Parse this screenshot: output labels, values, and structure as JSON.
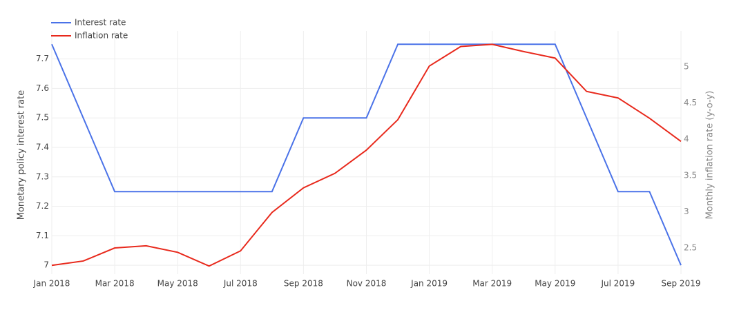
{
  "chart_data": {
    "type": "line",
    "x": [
      "2018-01",
      "2018-02",
      "2018-03",
      "2018-04",
      "2018-05",
      "2018-06",
      "2018-07",
      "2018-08",
      "2018-09",
      "2018-10",
      "2018-11",
      "2018-12",
      "2019-01",
      "2019-02",
      "2019-03",
      "2019-04",
      "2019-05",
      "2019-06",
      "2019-07",
      "2019-08",
      "2019-09"
    ],
    "xticks": [
      {
        "value": "2018-01",
        "label": "Jan 2018"
      },
      {
        "value": "2018-03",
        "label": "Mar 2018"
      },
      {
        "value": "2018-05",
        "label": "May 2018"
      },
      {
        "value": "2018-07",
        "label": "Jul 2018"
      },
      {
        "value": "2018-09",
        "label": "Sep 2018"
      },
      {
        "value": "2018-11",
        "label": "Nov 2018"
      },
      {
        "value": "2019-01",
        "label": "Jan 2019"
      },
      {
        "value": "2019-03",
        "label": "Mar 2019"
      },
      {
        "value": "2019-05",
        "label": "May 2019"
      },
      {
        "value": "2019-07",
        "label": "Jul 2019"
      },
      {
        "value": "2019-09",
        "label": "Sep 2019"
      }
    ],
    "y_label": "Monetary policy interest rate",
    "y2_label": "Monthly inflation rate (y-o-y)",
    "ylim": [
      6.97,
      7.795
    ],
    "yticks": [
      7,
      7.1,
      7.2,
      7.3,
      7.4,
      7.5,
      7.6,
      7.7
    ],
    "y2lim": [
      2.139,
      5.494
    ],
    "y2ticks": [
      2.5,
      3,
      3.5,
      4,
      4.5,
      5
    ],
    "grid": true,
    "legend": "top-left",
    "series": [
      {
        "name": "Interest rate",
        "color": "#4a72e8",
        "values": [
          7.75,
          7.5,
          7.25,
          7.25,
          7.25,
          7.25,
          7.25,
          7.25,
          7.5,
          7.5,
          7.5,
          7.75,
          7.75,
          7.75,
          7.75,
          7.75,
          7.75,
          7.5,
          7.25,
          7.25,
          7.0
        ]
      },
      {
        "name": "Inflation rate",
        "color": "#e8291c",
        "axis": "y2",
        "values": [
          2.26,
          2.32,
          2.5,
          2.53,
          2.44,
          2.25,
          2.46,
          2.99,
          3.33,
          3.53,
          3.85,
          4.27,
          5.01,
          5.28,
          5.31,
          5.21,
          5.12,
          4.66,
          4.57,
          4.29,
          3.97
        ]
      }
    ]
  }
}
